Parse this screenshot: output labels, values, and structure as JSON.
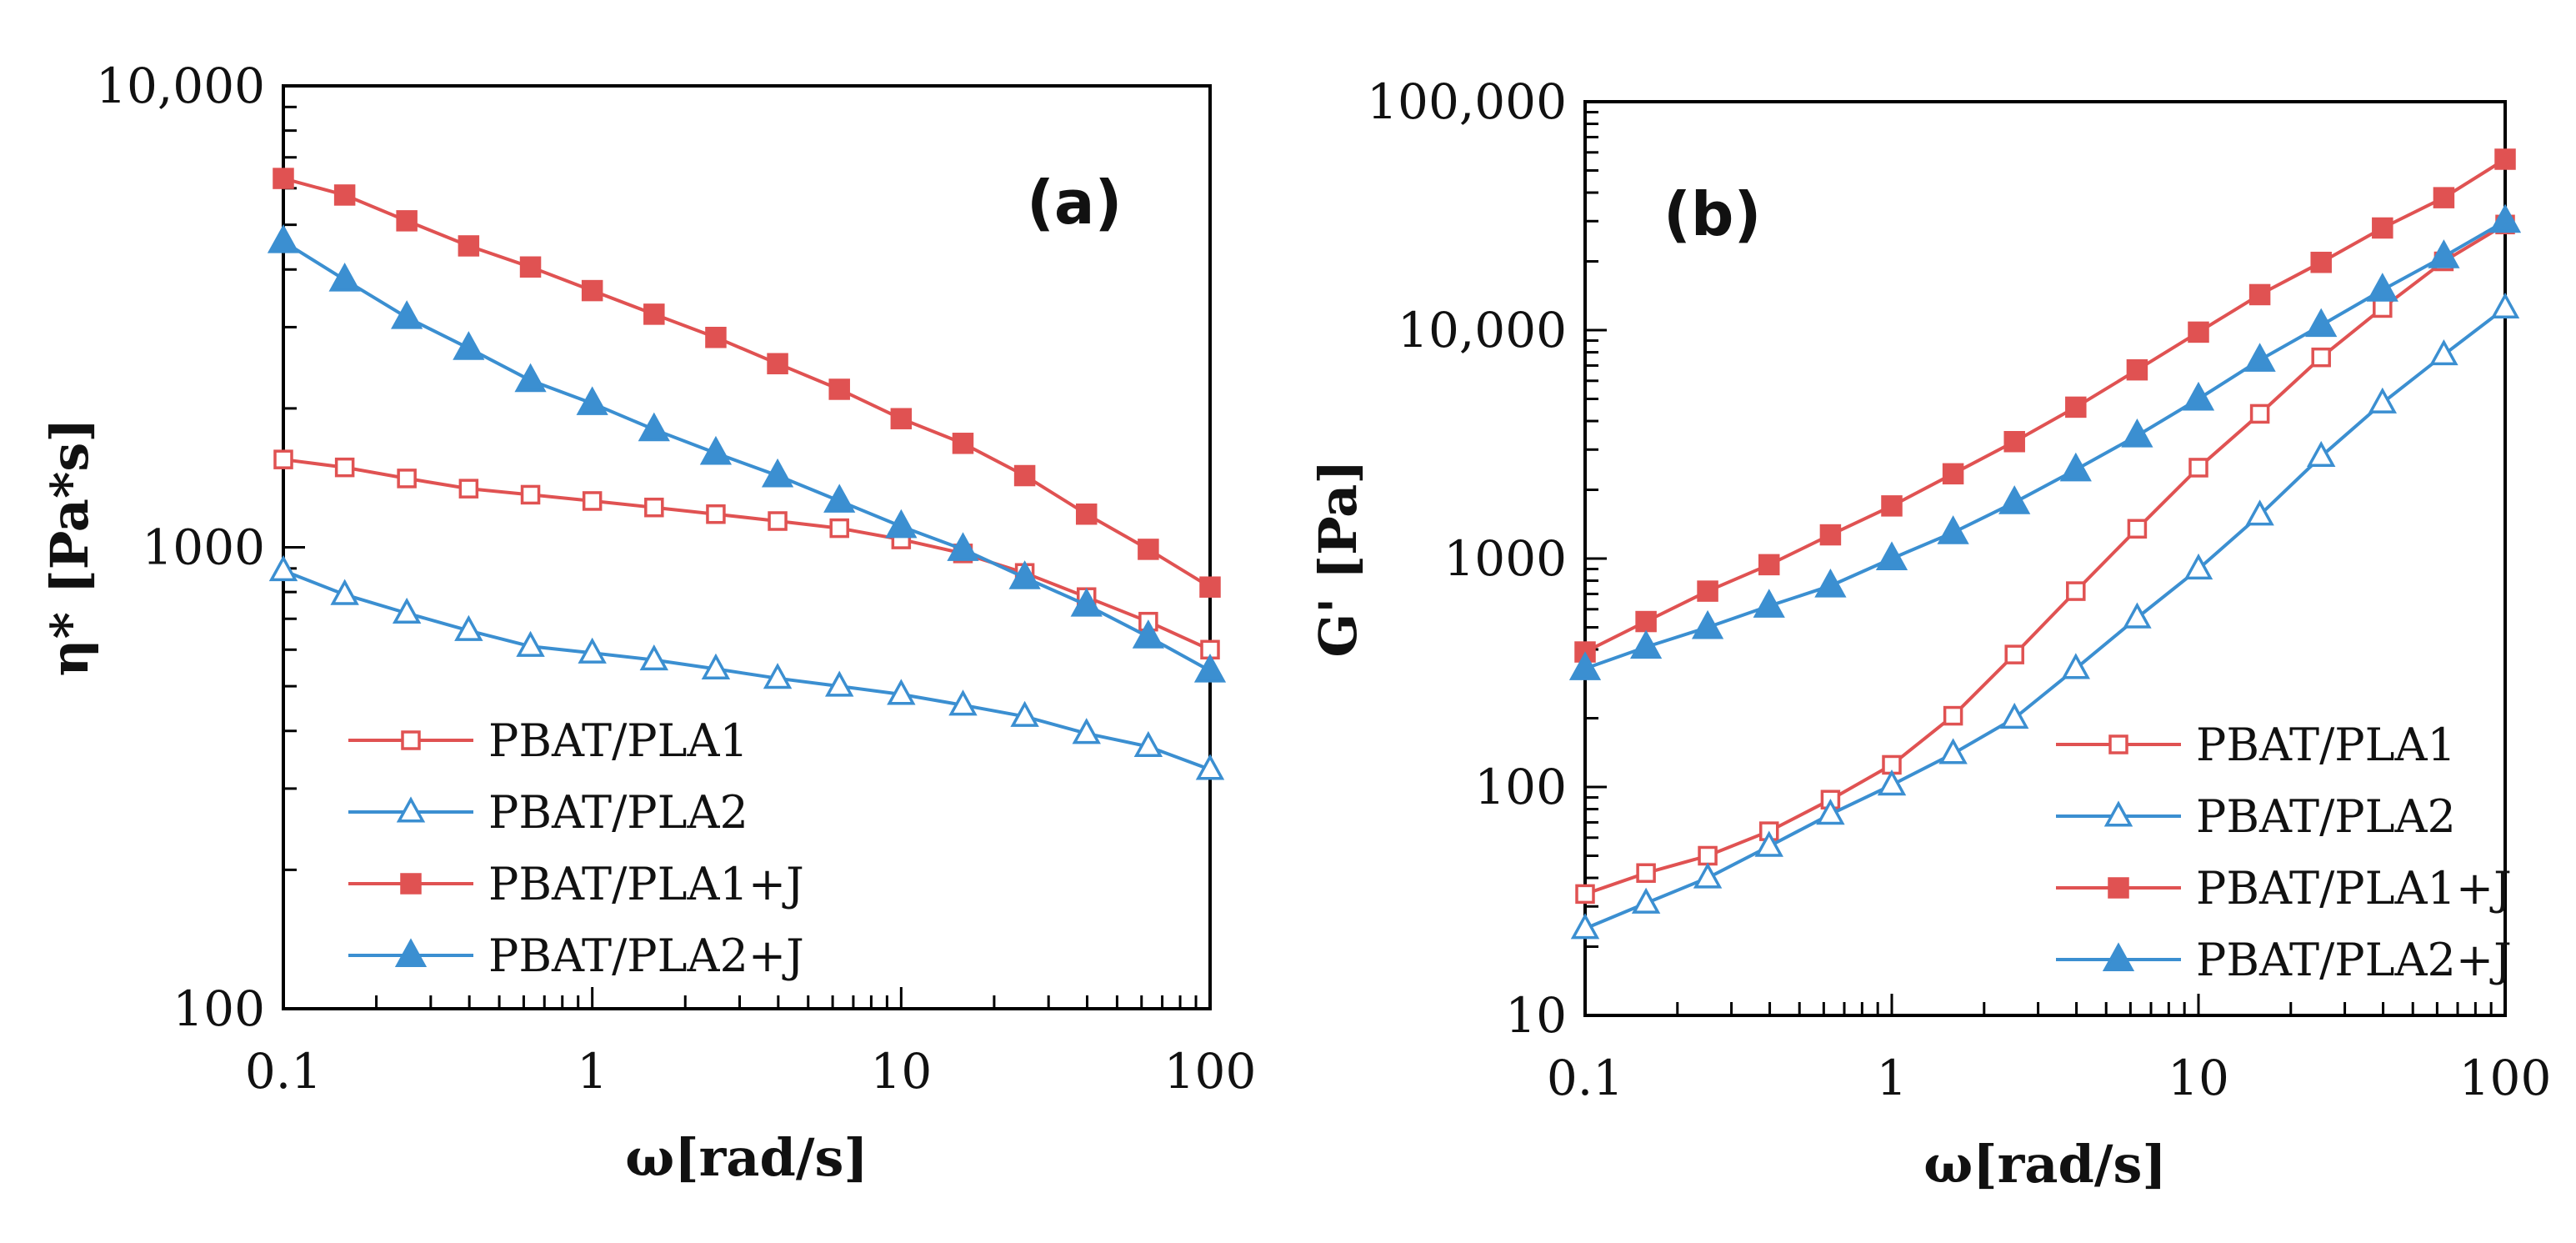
{
  "colors": {
    "red": "#e05252",
    "blue": "#3b8fd1",
    "axis": "#000000"
  },
  "chart_data": [
    {
      "type": "line",
      "panel_label": "(a)",
      "xlabel": "ω[rad/s]",
      "ylabel": "η* [Pa*s]",
      "x_scale": "log",
      "y_scale": "log",
      "xlim": [
        0.1,
        100
      ],
      "ylim": [
        100,
        10000
      ],
      "x_ticks": [
        0.1,
        1,
        10,
        100
      ],
      "x_tick_labels": [
        "0.1",
        "1",
        "10",
        "100"
      ],
      "y_ticks": [
        100,
        1000,
        10000
      ],
      "y_tick_labels": [
        "100",
        "1000",
        "10,000"
      ],
      "legend_position": "lower-left",
      "x": [
        0.1,
        0.158,
        0.251,
        0.398,
        0.631,
        1,
        1.585,
        2.512,
        3.981,
        6.31,
        10,
        15.85,
        25.12,
        39.81,
        63.1,
        100
      ],
      "series": [
        {
          "name": "PBAT/PLA1",
          "color": "red",
          "marker": "square-open",
          "values": [
            1550,
            1490,
            1410,
            1340,
            1300,
            1260,
            1220,
            1180,
            1140,
            1100,
            1040,
            970,
            880,
            780,
            690,
            600
          ]
        },
        {
          "name": "PBAT/PLA2",
          "color": "blue",
          "marker": "triangle-open",
          "values": [
            890,
            790,
            720,
            660,
            610,
            590,
            570,
            545,
            520,
            500,
            480,
            455,
            430,
            395,
            370,
            330
          ]
        },
        {
          "name": "PBAT/PLA1+J",
          "color": "red",
          "marker": "square-filled",
          "values": [
            6300,
            5800,
            5100,
            4500,
            4050,
            3600,
            3200,
            2850,
            2500,
            2200,
            1900,
            1680,
            1430,
            1180,
            990,
            820
          ]
        },
        {
          "name": "PBAT/PLA2+J",
          "color": "blue",
          "marker": "triangle-filled",
          "values": [
            4600,
            3800,
            3150,
            2700,
            2300,
            2050,
            1800,
            1600,
            1430,
            1260,
            1110,
            990,
            860,
            750,
            640,
            540
          ]
        }
      ]
    },
    {
      "type": "line",
      "panel_label": "(b)",
      "xlabel": "ω[rad/s]",
      "ylabel": "G' [Pa]",
      "x_scale": "log",
      "y_scale": "log",
      "xlim": [
        0.1,
        100
      ],
      "ylim": [
        10,
        100000
      ],
      "x_ticks": [
        0.1,
        1,
        10,
        100
      ],
      "x_tick_labels": [
        "0.1",
        "1",
        "10",
        "100"
      ],
      "y_ticks": [
        10,
        100,
        1000,
        10000,
        100000
      ],
      "y_tick_labels": [
        "10",
        "100",
        "1000",
        "10,000",
        "100,000"
      ],
      "legend_position": "lower-right",
      "x": [
        0.1,
        0.158,
        0.251,
        0.398,
        0.631,
        1,
        1.585,
        2.512,
        3.981,
        6.31,
        10,
        15.85,
        25.12,
        39.81,
        63.1,
        100
      ],
      "series": [
        {
          "name": "PBAT/PLA1",
          "color": "red",
          "marker": "square-open",
          "values": [
            34,
            42,
            50,
            64,
            88,
            125,
            205,
            380,
            720,
            1350,
            2500,
            4300,
            7600,
            12500,
            20000,
            29000
          ]
        },
        {
          "name": "PBAT/PLA2",
          "color": "blue",
          "marker": "triangle-open",
          "values": [
            24,
            31,
            40,
            55,
            76,
            102,
            140,
            200,
            330,
            550,
            900,
            1550,
            2800,
            4800,
            7800,
            12500
          ]
        },
        {
          "name": "PBAT/PLA1+J",
          "color": "red",
          "marker": "square-filled",
          "values": [
            390,
            530,
            720,
            940,
            1270,
            1700,
            2350,
            3250,
            4600,
            6700,
            9800,
            14300,
            19800,
            28000,
            38000,
            56000
          ]
        },
        {
          "name": "PBAT/PLA2+J",
          "color": "blue",
          "marker": "triangle-filled",
          "values": [
            330,
            410,
            500,
            620,
            760,
            1000,
            1300,
            1760,
            2450,
            3450,
            5000,
            7400,
            10500,
            15000,
            21000,
            30000
          ]
        }
      ]
    }
  ]
}
